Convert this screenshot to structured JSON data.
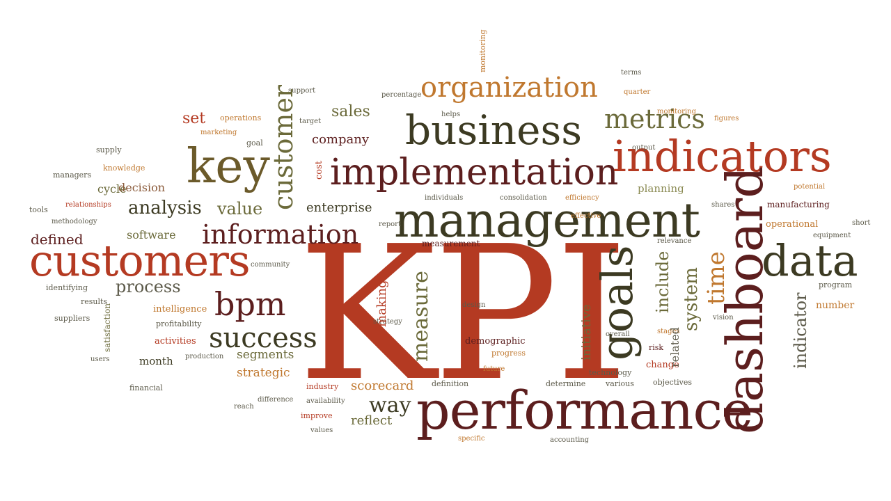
{
  "colors": {
    "red": "#b43a22",
    "dark_green": "#3c3a22",
    "maroon": "#5c1e1e",
    "orange": "#c0782f",
    "gray": "#7a7462",
    "olive": "#8a8a52"
  },
  "words": {
    "kpi": "KPI",
    "performance": "performance",
    "management": "management",
    "implementation": "implementation",
    "business": "business",
    "indicators": "indicators",
    "customers": "customers",
    "dashboard": "dashboard",
    "data": "data",
    "key": "key",
    "goals": "goals",
    "organization": "organization",
    "information": "information",
    "bpm": "bpm",
    "success": "success",
    "metrics": "metrics",
    "customer": "customer",
    "measure": "measure",
    "time": "time",
    "system": "system",
    "include": "include",
    "indicator": "indicator",
    "analysis": "analysis",
    "value": "value",
    "defined": "defined",
    "process": "process",
    "software": "software",
    "sales": "sales",
    "company": "company",
    "enterprise": "enterprise",
    "set": "set",
    "way": "way",
    "scorecard": "scorecard",
    "reflect": "reflect",
    "strategic": "strategic",
    "making": "making",
    "segments": "segments",
    "planning": "planning",
    "manufacturing": "manufacturing",
    "operational": "operational",
    "number": "number",
    "month": "month",
    "financial": "financial",
    "supply": "supply",
    "cycle": "cycle",
    "decision": "decision",
    "managers": "managers",
    "tools": "tools",
    "intelligence": "intelligence",
    "activities": "activities",
    "profitability": "profitability",
    "demographic": "demographic",
    "design": "design",
    "initiative": "initiative",
    "technology": "technology",
    "change": "change",
    "objectives": "objectives",
    "related": "related",
    "progress": "progress",
    "measurement": "measurement",
    "cost": "cost",
    "relevance": "relevance",
    "terms": "terms",
    "target": "target",
    "support": "support",
    "percentage": "percentage",
    "operations": "operations",
    "results": "results",
    "users": "users",
    "goal": "goal",
    "knowledge": "knowledge",
    "relationships": "relationships",
    "methodology": "methodology",
    "identifying": "identifying",
    "suppliers": "suppliers",
    "satisfaction": "satisfaction",
    "definition": "definition",
    "determine": "determine",
    "various": "various",
    "improve": "improve",
    "values": "values",
    "specific": "specific",
    "industry": "industry",
    "availability": "availability",
    "difference": "difference",
    "reach": "reach",
    "future": "future",
    "helps": "helps",
    "quarter": "quarter",
    "output": "output",
    "figures": "figures",
    "report": "report",
    "individuals": "individuals",
    "consolidation": "consolidation",
    "efficiency": "efficiency",
    "equipment": "equipment",
    "program": "program",
    "monitoring": "monitoring",
    "strategy": "strategy",
    "production": "production",
    "potential": "potential",
    "shares": "shares",
    "accounting": "accounting",
    "vision": "vision",
    "community": "community",
    "overall": "overall",
    "short": "short",
    "risk": "risk",
    "stages": "stages",
    "effective": "effective",
    "marketing": "marketing"
  }
}
